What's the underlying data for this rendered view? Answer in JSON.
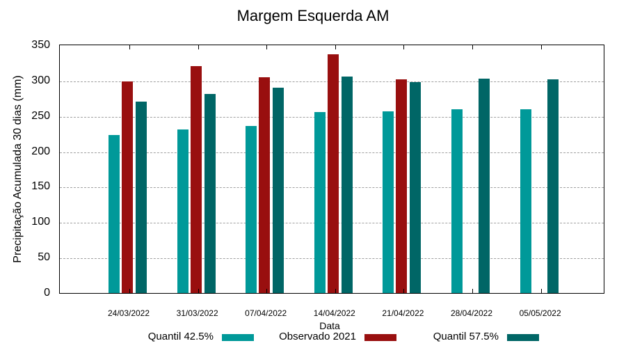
{
  "chart_data": {
    "type": "bar",
    "title": "Margem Esquerda AM",
    "xlabel": "Data",
    "ylabel": "Precipitação Acumulada 30 dias (mm)",
    "ylim": [
      0,
      350
    ],
    "yticks": [
      0,
      50,
      100,
      150,
      200,
      250,
      300,
      350
    ],
    "grid": true,
    "legend_position": "bottom",
    "categories": [
      "24/03/2022",
      "31/03/2022",
      "07/04/2022",
      "14/04/2022",
      "21/04/2022",
      "28/04/2022",
      "05/05/2022"
    ],
    "series": [
      {
        "name": "Quantil 42.5%",
        "color": "#009999",
        "values": [
          223,
          231,
          236,
          256,
          257,
          260,
          260
        ]
      },
      {
        "name": "Observado 2021",
        "color": "#990f0f",
        "values": [
          299,
          321,
          305,
          337,
          302,
          null,
          null
        ]
      },
      {
        "name": "Quantil 57.5%",
        "color": "#006666",
        "values": [
          270,
          281,
          290,
          306,
          298,
          303,
          302
        ]
      }
    ]
  }
}
